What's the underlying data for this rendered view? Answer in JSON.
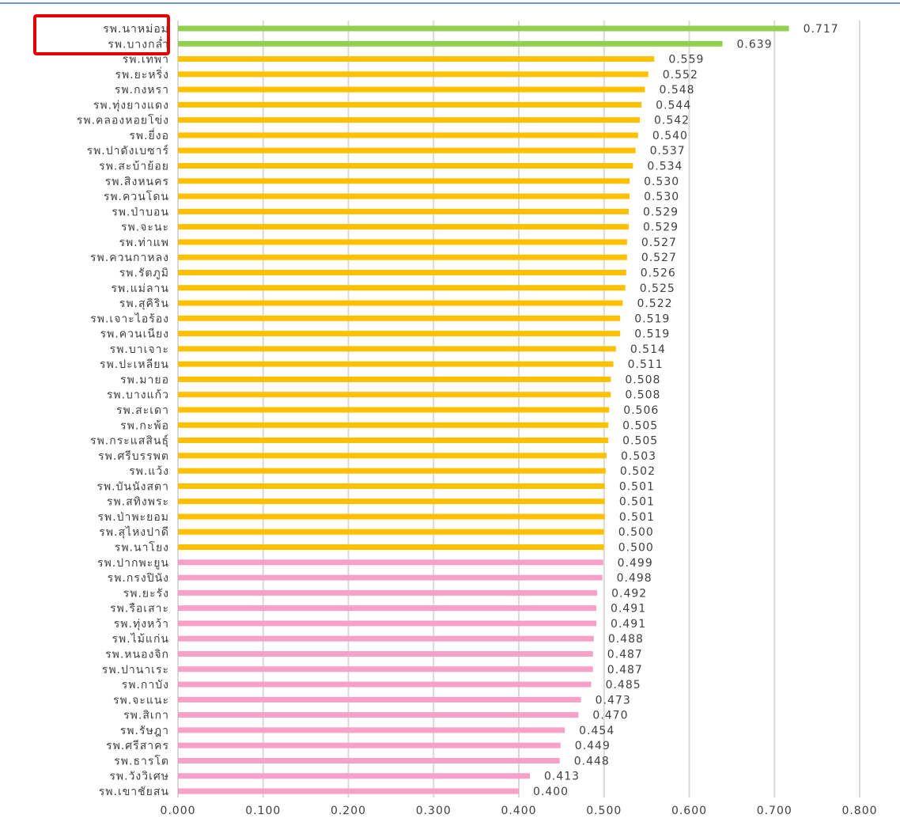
{
  "chart_data": {
    "type": "barh",
    "categories": [
      "รพ.นาหม่อม",
      "รพ.บางกล่ำ",
      "รพ.เทพา",
      "รพ.ยะหริ่ง",
      "รพ.กงหรา",
      "รพ.ทุ่งยางแดง",
      "รพ.คลองหอยโข่ง",
      "รพ.ยี่งอ",
      "รพ.ปาดังเบซาร์",
      "รพ.สะบ้าย้อย",
      "รพ.สิงหนคร",
      "รพ.ควนโดน",
      "รพ.ป่าบอน",
      "รพ.จะนะ",
      "รพ.ท่าแพ",
      "รพ.ควนกาหลง",
      "รพ.รัตภูมิ",
      "รพ.แม่ลาน",
      "รพ.สุคิริน",
      "รพ.เจาะไอร้อง",
      "รพ.ควนเนียง",
      "รพ.บาเจาะ",
      "รพ.ปะเหลียน",
      "รพ.มายอ",
      "รพ.บางแก้ว",
      "รพ.สะเดา",
      "รพ.กะพ้อ",
      "รพ.กระแสสินธุ์",
      "รพ.ศรีบรรพต",
      "รพ.แว้ง",
      "รพ.บันนังสตา",
      "รพ.สทิงพระ",
      "รพ.ป่าพะยอม",
      "รพ.สุไหงปาดี",
      "รพ.นาโยง",
      "รพ.ปากพะยูน",
      "รพ.กรงปินัง",
      "รพ.ยะรัง",
      "รพ.รือเสาะ",
      "รพ.ทุ่งหว้า",
      "รพ.ไม้แก่น",
      "รพ.หนองจิก",
      "รพ.ปานาเระ",
      "รพ.กาบัง",
      "รพ.จะแนะ",
      "รพ.สิเกา",
      "รพ.รัษฎา",
      "รพ.ศรีสาคร",
      "รพ.ธารโต",
      "รพ.วังวิเศษ",
      "รพ.เขาชัยสน"
    ],
    "values": [
      0.717,
      0.639,
      0.559,
      0.552,
      0.548,
      0.544,
      0.542,
      0.54,
      0.537,
      0.534,
      0.53,
      0.53,
      0.529,
      0.529,
      0.527,
      0.527,
      0.526,
      0.525,
      0.522,
      0.519,
      0.519,
      0.514,
      0.511,
      0.508,
      0.508,
      0.506,
      0.505,
      0.505,
      0.503,
      0.502,
      0.501,
      0.501,
      0.501,
      0.5,
      0.5,
      0.499,
      0.498,
      0.492,
      0.491,
      0.491,
      0.488,
      0.487,
      0.487,
      0.485,
      0.473,
      0.47,
      0.454,
      0.449,
      0.448,
      0.413,
      0.4
    ],
    "value_labels": [
      "0.717",
      "0.639",
      "0.559",
      "0.552",
      "0.548",
      "0.544",
      "0.542",
      "0.540",
      "0.537",
      "0.534",
      "0.530",
      "0.530",
      "0.529",
      "0.529",
      "0.527",
      "0.527",
      "0.526",
      "0.525",
      "0.522",
      "0.519",
      "0.519",
      "0.514",
      "0.511",
      "0.508",
      "0.508",
      "0.506",
      "0.505",
      "0.505",
      "0.503",
      "0.502",
      "0.501",
      "0.501",
      "0.501",
      "0.500",
      "0.500",
      "0.499",
      "0.498",
      "0.492",
      "0.491",
      "0.491",
      "0.488",
      "0.487",
      "0.487",
      "0.485",
      "0.473",
      "0.470",
      "0.454",
      "0.449",
      "0.448",
      "0.413",
      "0.400"
    ],
    "colors": [
      "#92d050",
      "#92d050",
      "#ffc000",
      "#ffc000",
      "#ffc000",
      "#ffc000",
      "#ffc000",
      "#ffc000",
      "#ffc000",
      "#ffc000",
      "#ffc000",
      "#ffc000",
      "#ffc000",
      "#ffc000",
      "#ffc000",
      "#ffc000",
      "#ffc000",
      "#ffc000",
      "#ffc000",
      "#ffc000",
      "#ffc000",
      "#ffc000",
      "#ffc000",
      "#ffc000",
      "#ffc000",
      "#ffc000",
      "#ffc000",
      "#ffc000",
      "#ffc000",
      "#ffc000",
      "#ffc000",
      "#ffc000",
      "#ffc000",
      "#ffc000",
      "#ffc000",
      "#f7a1c9",
      "#f7a1c9",
      "#f7a1c9",
      "#f7a1c9",
      "#f7a1c9",
      "#f7a1c9",
      "#f7a1c9",
      "#f7a1c9",
      "#f7a1c9",
      "#f7a1c9",
      "#f7a1c9",
      "#f7a1c9",
      "#f7a1c9",
      "#f7a1c9",
      "#f7a1c9",
      "#f7a1c9"
    ],
    "xlim": [
      0,
      0.8
    ],
    "xticks": [
      {
        "value": 0,
        "label": "0.000"
      },
      {
        "value": 0.1,
        "label": "0.100"
      },
      {
        "value": 0.2,
        "label": "0.200"
      },
      {
        "value": 0.3,
        "label": "0.300"
      },
      {
        "value": 0.4,
        "label": "0.400"
      },
      {
        "value": 0.5,
        "label": "0.500"
      },
      {
        "value": 0.6,
        "label": "0.600"
      },
      {
        "value": 0.7,
        "label": "0.700"
      },
      {
        "value": 0.8,
        "label": "0.800"
      }
    ],
    "grid": true
  }
}
